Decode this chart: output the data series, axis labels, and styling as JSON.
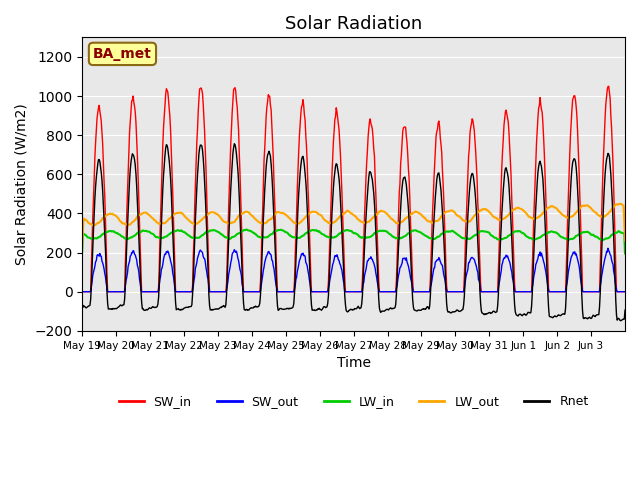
{
  "title": "Solar Radiation",
  "xlabel": "Time",
  "ylabel": "Solar Radiation (W/m2)",
  "annotation": "BA_met",
  "ylim": [
    -200,
    1300
  ],
  "yticks": [
    -200,
    0,
    200,
    400,
    600,
    800,
    1000,
    1200
  ],
  "x_tick_labels": [
    "May 19",
    "May 20",
    "May 21",
    "May 22",
    "May 23",
    "May 24",
    "May 25",
    "May 26",
    "May 27",
    "May 28",
    "May 29",
    "May 30",
    "May 31",
    "Jun 1",
    "Jun 2",
    "Jun 3"
  ],
  "colors": {
    "SW_in": "#FF0000",
    "SW_out": "#0000FF",
    "LW_in": "#00CC00",
    "LW_out": "#FFA500",
    "Rnet": "#000000"
  },
  "legend_labels": [
    "SW_in",
    "SW_out",
    "LW_in",
    "LW_out",
    "Rnet"
  ],
  "background_color": "#E8E8E8",
  "n_days": 16,
  "hours_per_day": 24,
  "dt_hours": 0.5
}
